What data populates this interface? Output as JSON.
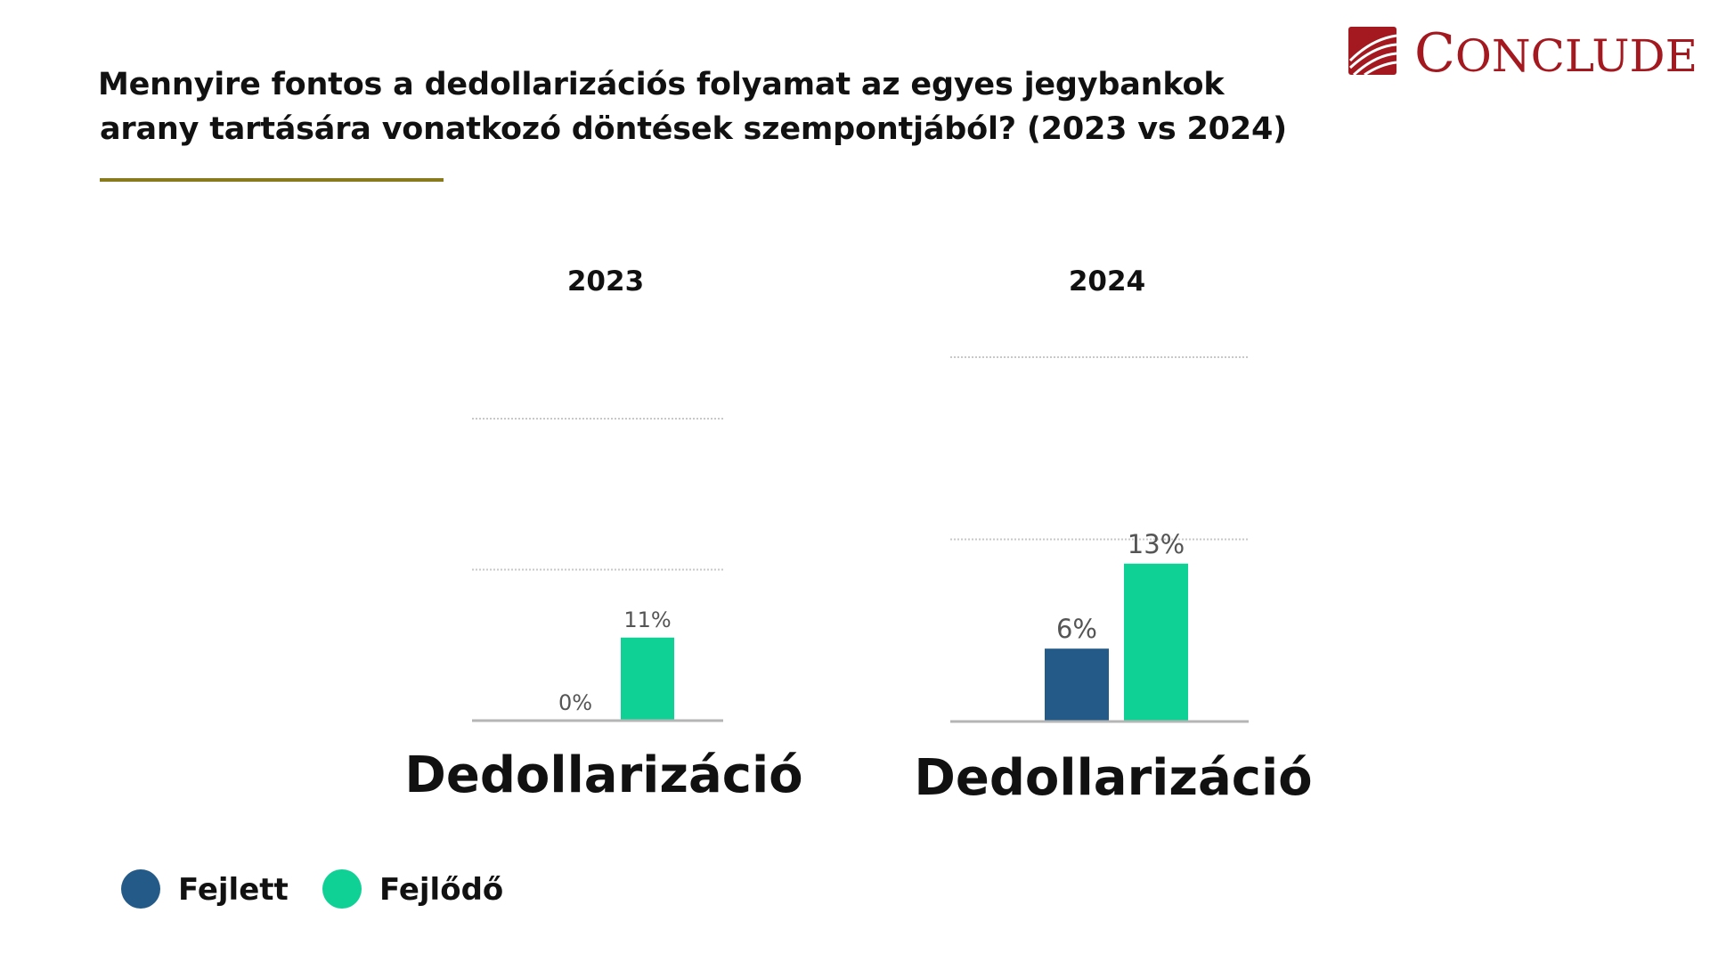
{
  "title": {
    "line1": "Mennyire fontos a dedollarizációs folyamat az egyes jegybankok",
    "line2": "arany tartására vonatkozó döntések szempontjából? (2023 vs 2024)"
  },
  "logo": {
    "text_first": "C",
    "text_rest": "ONCLUDE",
    "color": "#a3191f"
  },
  "chart_data": [
    {
      "type": "bar",
      "title": "2023",
      "categories": [
        "Dedollarizáció"
      ],
      "series": [
        {
          "name": "Fejlett",
          "values": [
            0
          ],
          "labels": [
            "0%"
          ]
        },
        {
          "name": "Fejlődő",
          "values": [
            11
          ],
          "labels": [
            "11%"
          ]
        }
      ],
      "ylim": [
        0,
        40
      ],
      "grid": true
    },
    {
      "type": "bar",
      "title": "2024",
      "categories": [
        "Dedollarizáció"
      ],
      "series": [
        {
          "name": "Fejlett",
          "values": [
            6
          ],
          "labels": [
            "6%"
          ]
        },
        {
          "name": "Fejlődő",
          "values": [
            13
          ],
          "labels": [
            "13%"
          ]
        }
      ],
      "ylim": [
        0,
        30
      ],
      "grid": true
    }
  ],
  "colors": {
    "Fejlett": "#235a87",
    "Fejlődő": "#0fd195",
    "grid": "#c8c8c8",
    "axis": "#b5b5b5",
    "label": "#555555",
    "rule": "#8a7a1e"
  },
  "legend": {
    "position": "bottom-left",
    "items": [
      {
        "name": "Fejlett",
        "color": "#235a87"
      },
      {
        "name": "Fejlődő",
        "color": "#0fd195"
      }
    ]
  }
}
